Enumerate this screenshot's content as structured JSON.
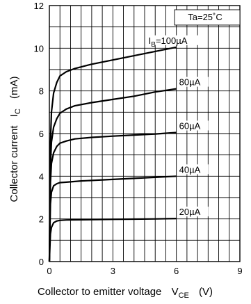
{
  "chart_data": {
    "type": "line",
    "annotation": "Ta=25˚C",
    "xlabel": {
      "main": "Collector to emitter voltage",
      "symbol": "V",
      "sub": "CE",
      "unit": "(V)"
    },
    "ylabel": {
      "main": "Collector current",
      "symbol": "I",
      "sub": "C",
      "unit": "(mA)"
    },
    "xlim": [
      0,
      9
    ],
    "ylim": [
      0,
      12
    ],
    "x_ticks": [
      0,
      3,
      6,
      9
    ],
    "y_ticks": [
      0,
      2,
      4,
      6,
      8,
      10,
      12
    ],
    "x_tick_labels": [
      "0",
      "3",
      "6",
      "9"
    ],
    "y_tick_labels": [
      "0",
      "2",
      "4",
      "6",
      "8",
      "10",
      "12"
    ],
    "grid": true,
    "series": [
      {
        "label": {
          "prefix": "I",
          "sub": "B",
          "suffix": "=100µA"
        },
        "points": [
          [
            0,
            0
          ],
          [
            0.05,
            5.5
          ],
          [
            0.1,
            7.0
          ],
          [
            0.2,
            7.9
          ],
          [
            0.35,
            8.4
          ],
          [
            0.5,
            8.7
          ],
          [
            0.8,
            8.9
          ],
          [
            1.2,
            9.05
          ],
          [
            2,
            9.25
          ],
          [
            3,
            9.45
          ],
          [
            4,
            9.65
          ],
          [
            5,
            9.85
          ],
          [
            6,
            10.05
          ]
        ]
      },
      {
        "label": {
          "prefix": "",
          "sub": "",
          "suffix": "80µA"
        },
        "points": [
          [
            0,
            0
          ],
          [
            0.05,
            4.5
          ],
          [
            0.1,
            5.6
          ],
          [
            0.2,
            6.3
          ],
          [
            0.35,
            6.7
          ],
          [
            0.5,
            6.95
          ],
          [
            0.8,
            7.15
          ],
          [
            1.2,
            7.3
          ],
          [
            2,
            7.45
          ],
          [
            3,
            7.6
          ],
          [
            4,
            7.75
          ],
          [
            5,
            7.95
          ],
          [
            6,
            8.1
          ]
        ]
      },
      {
        "label": {
          "prefix": "",
          "sub": "",
          "suffix": "60µA"
        },
        "points": [
          [
            0,
            0
          ],
          [
            0.05,
            3.7
          ],
          [
            0.1,
            4.6
          ],
          [
            0.2,
            5.1
          ],
          [
            0.35,
            5.4
          ],
          [
            0.5,
            5.55
          ],
          [
            0.8,
            5.65
          ],
          [
            1.2,
            5.75
          ],
          [
            2,
            5.82
          ],
          [
            3,
            5.88
          ],
          [
            4,
            5.93
          ],
          [
            5,
            5.98
          ],
          [
            6,
            6.05
          ]
        ]
      },
      {
        "label": {
          "prefix": "",
          "sub": "",
          "suffix": "40µA"
        },
        "points": [
          [
            0,
            0
          ],
          [
            0.05,
            2.7
          ],
          [
            0.1,
            3.25
          ],
          [
            0.2,
            3.55
          ],
          [
            0.35,
            3.65
          ],
          [
            0.5,
            3.7
          ],
          [
            0.8,
            3.72
          ],
          [
            1.5,
            3.78
          ],
          [
            3,
            3.85
          ],
          [
            4,
            3.9
          ],
          [
            5,
            3.95
          ],
          [
            6,
            4.0
          ]
        ]
      },
      {
        "label": {
          "prefix": "",
          "sub": "",
          "suffix": "20µA"
        },
        "points": [
          [
            0,
            0
          ],
          [
            0.05,
            1.3
          ],
          [
            0.1,
            1.6
          ],
          [
            0.2,
            1.82
          ],
          [
            0.35,
            1.9
          ],
          [
            0.5,
            1.93
          ],
          [
            0.8,
            1.95
          ],
          [
            1.5,
            1.96
          ],
          [
            3,
            1.98
          ],
          [
            4,
            1.99
          ],
          [
            5,
            2.0
          ],
          [
            6,
            2.02
          ]
        ]
      }
    ]
  }
}
